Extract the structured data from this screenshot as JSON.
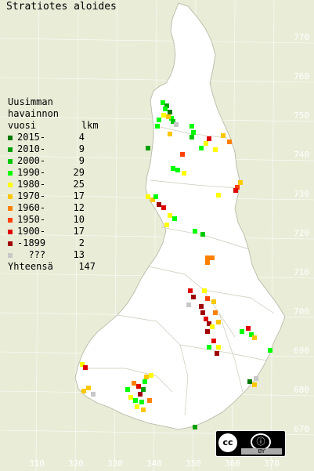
{
  "title": "Stratiotes aloides",
  "legend": {
    "heading_lines": [
      "Uusimman",
      "havainnon",
      "vuosi        lkm"
    ],
    "rows": [
      {
        "label": "2015-",
        "count": "4",
        "color": "#007a00"
      },
      {
        "label": "2010-",
        "count": "9",
        "color": "#00a000"
      },
      {
        "label": "2000-",
        "count": "9",
        "color": "#00c800"
      },
      {
        "label": "1990-",
        "count": "29",
        "color": "#00ff00"
      },
      {
        "label": "1980-",
        "count": "25",
        "color": "#ffff00"
      },
      {
        "label": "1970-",
        "count": "17",
        "color": "#ffc800"
      },
      {
        "label": "1960-",
        "count": "12",
        "color": "#ff8000"
      },
      {
        "label": "1950-",
        "count": "10",
        "color": "#ff4000"
      },
      {
        "label": "1900-",
        "count": "17",
        "color": "#e00000"
      },
      {
        "label": "-1899",
        "count": "2",
        "color": "#a00000"
      },
      {
        "label": "???",
        "count": "13",
        "color": "#c8c8c8"
      }
    ],
    "total_label": "Yhteensä",
    "total_count": "147"
  },
  "axes": {
    "y_ticks": [
      "770",
      "760",
      "750",
      "740",
      "730",
      "720",
      "710",
      "700",
      "690",
      "680",
      "670"
    ],
    "x_ticks": [
      "310",
      "320",
      "330",
      "340",
      "350",
      "360",
      "370"
    ]
  },
  "license": {
    "cc": "cc",
    "by": "BY"
  },
  "colors": {
    "background": "#e9ecd7",
    "land": "#ffffff",
    "border": "#9aa08a"
  }
}
